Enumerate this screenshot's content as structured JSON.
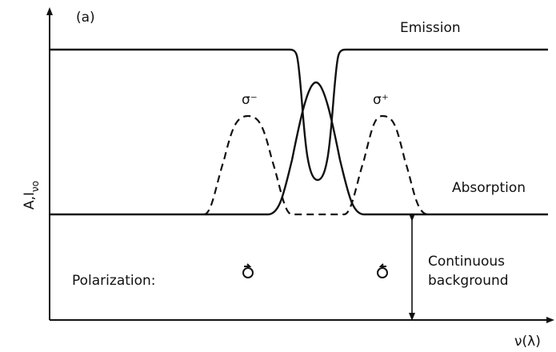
{
  "panel_label": "(a)",
  "axes": {
    "y_label": {
      "main": "A,I",
      "sub": "νo"
    },
    "x_label": "ν(λ)"
  },
  "curves": {
    "emission": "Emission",
    "absorption": "Absorption",
    "sigma_minus": "σ⁻",
    "sigma_plus": "σ⁺"
  },
  "polarization_label": "Polarization:",
  "background_label": [
    "Continuous",
    "background"
  ]
}
